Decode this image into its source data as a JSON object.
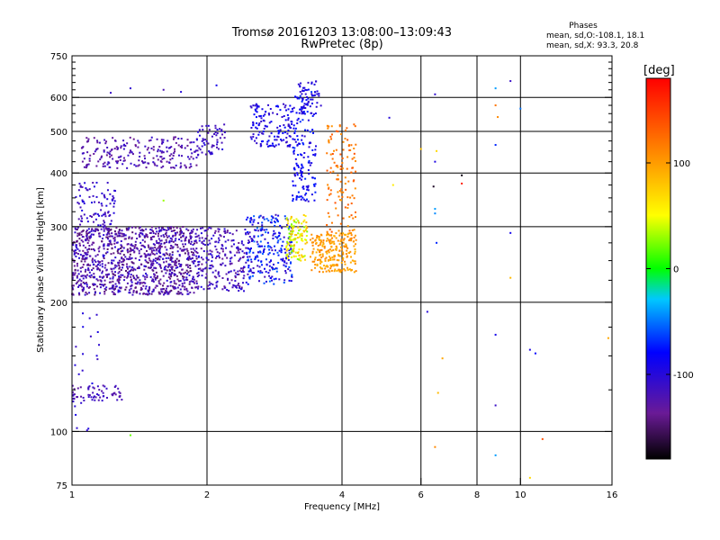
{
  "chart_data": {
    "type": "scatter",
    "title": "Tromsø 20161203 13:08:00–13:09:43",
    "subtitle": "RwPretec (8p)",
    "xlabel": "Frequency [MHz]",
    "ylabel": "Stationary phase Virtual Height [km]",
    "x_scale": "log",
    "y_scale": "log",
    "xlim": [
      1,
      16
    ],
    "ylim": [
      75,
      750
    ],
    "x_ticks": [
      1,
      2,
      4,
      6,
      8,
      10,
      16
    ],
    "x_tick_labels": [
      "1",
      "2",
      "4",
      "6",
      "8",
      "10",
      "16"
    ],
    "y_ticks": [
      75,
      100,
      200,
      300,
      400,
      500,
      600,
      750
    ],
    "y_tick_labels": [
      "75",
      "100",
      "200",
      "300",
      "400",
      "500",
      "600",
      "750"
    ],
    "y_minor_ticks": [
      125,
      150,
      175,
      225,
      250,
      275,
      325,
      350,
      375,
      425,
      450,
      475,
      525,
      550,
      575,
      625,
      650,
      675,
      700,
      725
    ],
    "grid_x": [
      2,
      4,
      6,
      8,
      10
    ],
    "grid_y": [
      100,
      200,
      300,
      400,
      500,
      600
    ],
    "stats": {
      "header": "Phases",
      "line1": "mean, sd,O:-108.1, 18.1",
      "line2": "mean, sd,X:  93.3, 20.8"
    },
    "colorbar": {
      "label": "[deg]",
      "range": [
        -180,
        180
      ],
      "ticks": [
        100,
        0,
        -100
      ],
      "tick_labels": [
        "100",
        "0",
        "-100"
      ]
    },
    "point_groups": [
      {
        "f": [
          1.0,
          1.9
        ],
        "h": [
          208,
          300
        ],
        "n": 1100,
        "phase": [
          -150,
          -100
        ]
      },
      {
        "f": [
          1.02,
          1.25
        ],
        "h": [
          300,
          380
        ],
        "n": 90,
        "phase": [
          -125,
          -95
        ]
      },
      {
        "f": [
          1.05,
          1.9
        ],
        "h": [
          410,
          485
        ],
        "n": 220,
        "phase": [
          -140,
          -105
        ]
      },
      {
        "f": [
          1.9,
          2.2
        ],
        "h": [
          440,
          520
        ],
        "n": 60,
        "phase": [
          -125,
          -95
        ]
      },
      {
        "f": [
          1.9,
          2.45
        ],
        "h": [
          212,
          300
        ],
        "n": 230,
        "phase": [
          -140,
          -95
        ]
      },
      {
        "f": [
          2.45,
          3.1
        ],
        "h": [
          220,
          320
        ],
        "n": 260,
        "phase": [
          -118,
          -50
        ]
      },
      {
        "f": [
          2.5,
          3.1
        ],
        "h": [
          460,
          580
        ],
        "n": 140,
        "phase": [
          -112,
          -75
        ]
      },
      {
        "f": [
          3.0,
          3.35
        ],
        "h": [
          250,
          320
        ],
        "n": 120,
        "phase": [
          20,
          95
        ]
      },
      {
        "f": [
          3.1,
          3.5
        ],
        "h": [
          340,
          630
        ],
        "n": 170,
        "phase": [
          -105,
          -65
        ]
      },
      {
        "f": [
          3.2,
          3.6
        ],
        "h": [
          550,
          660
        ],
        "n": 40,
        "phase": [
          -112,
          -90
        ]
      },
      {
        "f": [
          3.4,
          4.3
        ],
        "h": [
          235,
          290
        ],
        "n": 230,
        "phase": [
          85,
          115
        ]
      },
      {
        "f": [
          3.7,
          4.3
        ],
        "h": [
          290,
          520
        ],
        "n": 120,
        "phase": [
          100,
          140
        ]
      },
      {
        "f": [
          1.0,
          1.3
        ],
        "h": [
          118,
          128
        ],
        "n": 60,
        "phase": [
          -130,
          -105
        ]
      },
      {
        "f": [
          1.0,
          1.15
        ],
        "h": [
          100,
          190
        ],
        "n": 25,
        "phase": [
          -115,
          -90
        ]
      }
    ],
    "points": [
      {
        "f": 1.22,
        "h": 615,
        "phase": -110
      },
      {
        "f": 1.35,
        "h": 630,
        "phase": -105
      },
      {
        "f": 1.6,
        "h": 625,
        "phase": -120
      },
      {
        "f": 1.75,
        "h": 618,
        "phase": -100
      },
      {
        "f": 2.1,
        "h": 640,
        "phase": -90
      },
      {
        "f": 5.1,
        "h": 538,
        "phase": -100
      },
      {
        "f": 5.2,
        "h": 375,
        "phase": 60
      },
      {
        "f": 6.0,
        "h": 455,
        "phase": 80
      },
      {
        "f": 6.45,
        "h": 610,
        "phase": -105
      },
      {
        "f": 6.5,
        "h": 450,
        "phase": 70
      },
      {
        "f": 6.45,
        "h": 425,
        "phase": -95
      },
      {
        "f": 6.4,
        "h": 372,
        "phase": -170
      },
      {
        "f": 6.45,
        "h": 330,
        "phase": -40
      },
      {
        "f": 6.45,
        "h": 322,
        "phase": -45
      },
      {
        "f": 6.5,
        "h": 275,
        "phase": -70
      },
      {
        "f": 6.2,
        "h": 190,
        "phase": -100
      },
      {
        "f": 6.7,
        "h": 148,
        "phase": 95
      },
      {
        "f": 6.55,
        "h": 123,
        "phase": 85
      },
      {
        "f": 6.45,
        "h": 92,
        "phase": 110
      },
      {
        "f": 7.4,
        "h": 395,
        "phase": -175
      },
      {
        "f": 7.4,
        "h": 378,
        "phase": 165
      },
      {
        "f": 8.8,
        "h": 630,
        "phase": -40
      },
      {
        "f": 8.8,
        "h": 575,
        "phase": 120
      },
      {
        "f": 8.9,
        "h": 540,
        "phase": 110
      },
      {
        "f": 8.8,
        "h": 465,
        "phase": -70
      },
      {
        "f": 9.5,
        "h": 655,
        "phase": -110
      },
      {
        "f": 10.0,
        "h": 565,
        "phase": -50
      },
      {
        "f": 9.5,
        "h": 290,
        "phase": -90
      },
      {
        "f": 9.5,
        "h": 228,
        "phase": 85
      },
      {
        "f": 8.8,
        "h": 168,
        "phase": -90
      },
      {
        "f": 8.8,
        "h": 115,
        "phase": -110
      },
      {
        "f": 8.8,
        "h": 88,
        "phase": -40
      },
      {
        "f": 10.5,
        "h": 155,
        "phase": -95
      },
      {
        "f": 10.8,
        "h": 152,
        "phase": -80
      },
      {
        "f": 11.2,
        "h": 96,
        "phase": 140
      },
      {
        "f": 10.5,
        "h": 78,
        "phase": 70
      },
      {
        "f": 15.7,
        "h": 165,
        "phase": 95
      },
      {
        "f": 1.6,
        "h": 345,
        "phase": 30
      },
      {
        "f": 1.35,
        "h": 98,
        "phase": 20
      }
    ]
  }
}
